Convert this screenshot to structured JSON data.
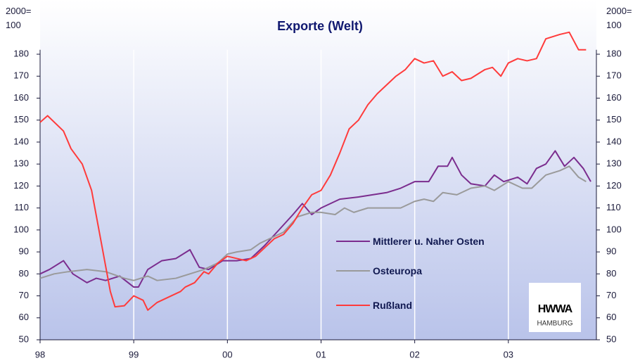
{
  "chart_data": {
    "type": "line",
    "title": "Exporte (Welt)",
    "y_unit": "2000=\n100",
    "xlim": [
      1998,
      2003.94
    ],
    "xticks": [
      {
        "value": 1998,
        "label": "98"
      },
      {
        "value": 1999,
        "label": "99"
      },
      {
        "value": 2000,
        "label": "00"
      },
      {
        "value": 2001,
        "label": "01"
      },
      {
        "value": 2002,
        "label": "02"
      },
      {
        "value": 2003,
        "label": "03"
      }
    ],
    "ylim": [
      50,
      182
    ],
    "yticks": [
      50,
      60,
      70,
      80,
      90,
      100,
      110,
      120,
      130,
      140,
      150,
      160,
      170,
      180
    ],
    "y2lim": [
      50,
      182
    ],
    "y2ticks": [
      50,
      60,
      70,
      80,
      90,
      100,
      110,
      120,
      130,
      140,
      150,
      160,
      170,
      180
    ],
    "grid": true,
    "logo": {
      "title": "HWWA",
      "subtitle": "HAMBURG"
    },
    "series": [
      {
        "name": "Mittlerer u. Naher Osten",
        "color": "#7b2d8e",
        "x": [
          1998.0,
          1998.1,
          1998.25,
          1998.35,
          1998.5,
          1998.6,
          1998.7,
          1998.85,
          1999.0,
          1999.05,
          1999.15,
          1999.3,
          1999.45,
          1999.6,
          1999.7,
          1999.8,
          1999.95,
          2000.1,
          2000.25,
          2000.4,
          2000.55,
          2000.7,
          2000.8,
          2000.9,
          2001.0,
          2001.2,
          2001.4,
          2001.55,
          2001.7,
          2001.85,
          2002.0,
          2002.15,
          2002.25,
          2002.35,
          2002.4,
          2002.5,
          2002.6,
          2002.75,
          2002.85,
          2002.95,
          2003.1,
          2003.2,
          2003.3,
          2003.4,
          2003.5,
          2003.6,
          2003.7,
          2003.8,
          2003.88
        ],
        "values": [
          80,
          82,
          86,
          80,
          76,
          78,
          77,
          79,
          74,
          74,
          82,
          86,
          87,
          91,
          83,
          82,
          86,
          86,
          87,
          93,
          100,
          107,
          112,
          107,
          110,
          114,
          115,
          116,
          117,
          119,
          122,
          122,
          129,
          129,
          133,
          125,
          121,
          120,
          125,
          122,
          124,
          121,
          128,
          130,
          136,
          129,
          133,
          128,
          122
        ]
      },
      {
        "name": "Osteuropa",
        "color": "#9a9a9a",
        "x": [
          1998.0,
          1998.15,
          1998.3,
          1998.5,
          1998.7,
          1998.9,
          1999.0,
          1999.15,
          1999.25,
          1999.45,
          1999.6,
          1999.75,
          1999.9,
          2000.0,
          2000.1,
          2000.25,
          2000.35,
          2000.5,
          2000.6,
          2000.75,
          2000.9,
          2001.0,
          2001.15,
          2001.25,
          2001.35,
          2001.5,
          2001.7,
          2001.85,
          2002.0,
          2002.1,
          2002.2,
          2002.3,
          2002.45,
          2002.6,
          2002.75,
          2002.85,
          2003.0,
          2003.15,
          2003.25,
          2003.4,
          2003.55,
          2003.65,
          2003.75,
          2003.83
        ],
        "values": [
          78,
          80,
          81,
          82,
          81,
          78,
          77,
          79,
          77,
          78,
          80,
          82,
          85,
          89,
          90,
          91,
          94,
          97,
          99,
          106,
          108,
          108,
          107,
          110,
          108,
          110,
          110,
          110,
          113,
          114,
          113,
          117,
          116,
          119,
          120,
          118,
          122,
          119,
          119,
          125,
          127,
          129,
          124,
          122
        ]
      },
      {
        "name": "Rußland",
        "color": "#ff3b3b",
        "x": [
          1998.0,
          1998.08,
          1998.25,
          1998.33,
          1998.45,
          1998.55,
          1998.65,
          1998.75,
          1998.8,
          1998.9,
          1999.0,
          1999.1,
          1999.15,
          1999.25,
          1999.35,
          1999.5,
          1999.55,
          1999.65,
          1999.75,
          1999.8,
          1999.9,
          2000.0,
          2000.1,
          2000.2,
          2000.3,
          2000.4,
          2000.5,
          2000.6,
          2000.7,
          2000.8,
          2000.9,
          2001.0,
          2001.1,
          2001.2,
          2001.3,
          2001.4,
          2001.5,
          2001.6,
          2001.7,
          2001.8,
          2001.9,
          2002.0,
          2002.1,
          2002.2,
          2002.3,
          2002.4,
          2002.5,
          2002.6,
          2002.75,
          2002.83,
          2002.92,
          2003.0,
          2003.1,
          2003.2,
          2003.3,
          2003.4,
          2003.55,
          2003.65,
          2003.75,
          2003.83
        ],
        "values": [
          149,
          152,
          145,
          137,
          130,
          118,
          95,
          72,
          65,
          65.5,
          70,
          68,
          63.5,
          67,
          69,
          72,
          74,
          76,
          81,
          80,
          85,
          88,
          87,
          86,
          88,
          92,
          96,
          98,
          103,
          110,
          116,
          118,
          125,
          135,
          146,
          150,
          157,
          162,
          166,
          170,
          173,
          178,
          176,
          177,
          170,
          172,
          168,
          169,
          173,
          174,
          170,
          176,
          178,
          177,
          178,
          187,
          189,
          190,
          182,
          182
        ]
      }
    ]
  }
}
